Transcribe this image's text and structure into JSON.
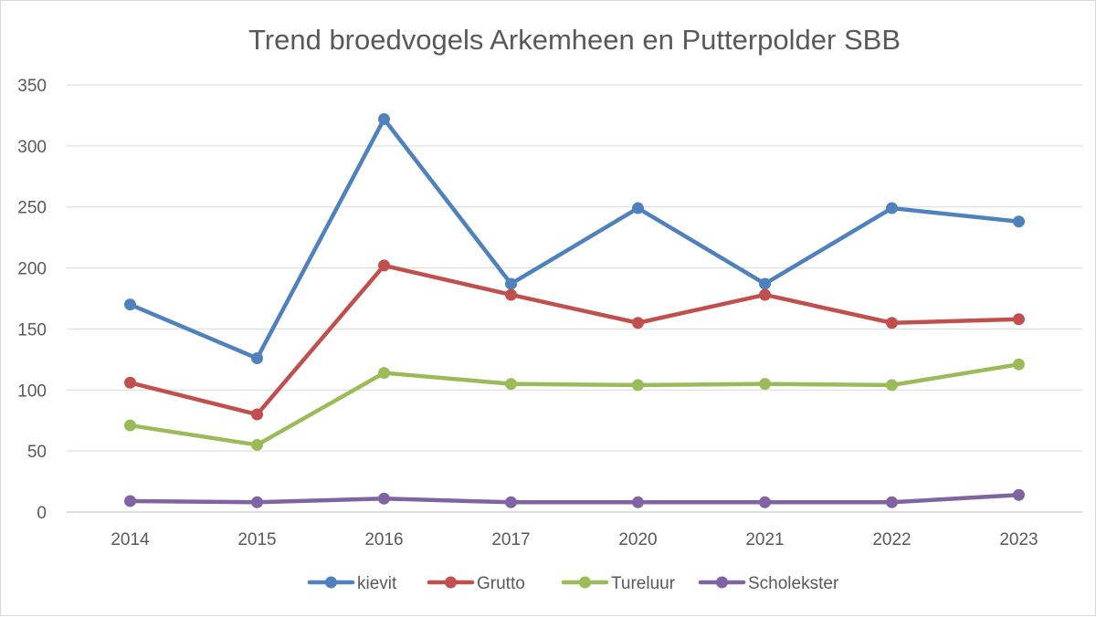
{
  "chart_data": {
    "type": "line",
    "title": "Trend broedvogels Arkemheen en Putterpolder SBB",
    "xlabel": "",
    "ylabel": "",
    "categories": [
      "2014",
      "2015",
      "2016",
      "2017",
      "2020",
      "2021",
      "2022",
      "2023"
    ],
    "ylim": [
      0,
      350
    ],
    "yticks": [
      0,
      50,
      100,
      150,
      200,
      250,
      300,
      350
    ],
    "grid": true,
    "legend_position": "bottom",
    "series": [
      {
        "name": "kievit",
        "color": "#4f81bd",
        "values": [
          170,
          126,
          322,
          187,
          249,
          187,
          249,
          238
        ]
      },
      {
        "name": "Grutto",
        "color": "#c0504d",
        "values": [
          106,
          80,
          202,
          178,
          155,
          178,
          155,
          158
        ]
      },
      {
        "name": "Tureluur",
        "color": "#9bbb59",
        "values": [
          71,
          55,
          114,
          105,
          104,
          105,
          104,
          121
        ]
      },
      {
        "name": "Scholekster",
        "color": "#8064a2",
        "values": [
          9,
          8,
          11,
          8,
          8,
          8,
          8,
          14
        ]
      }
    ]
  }
}
